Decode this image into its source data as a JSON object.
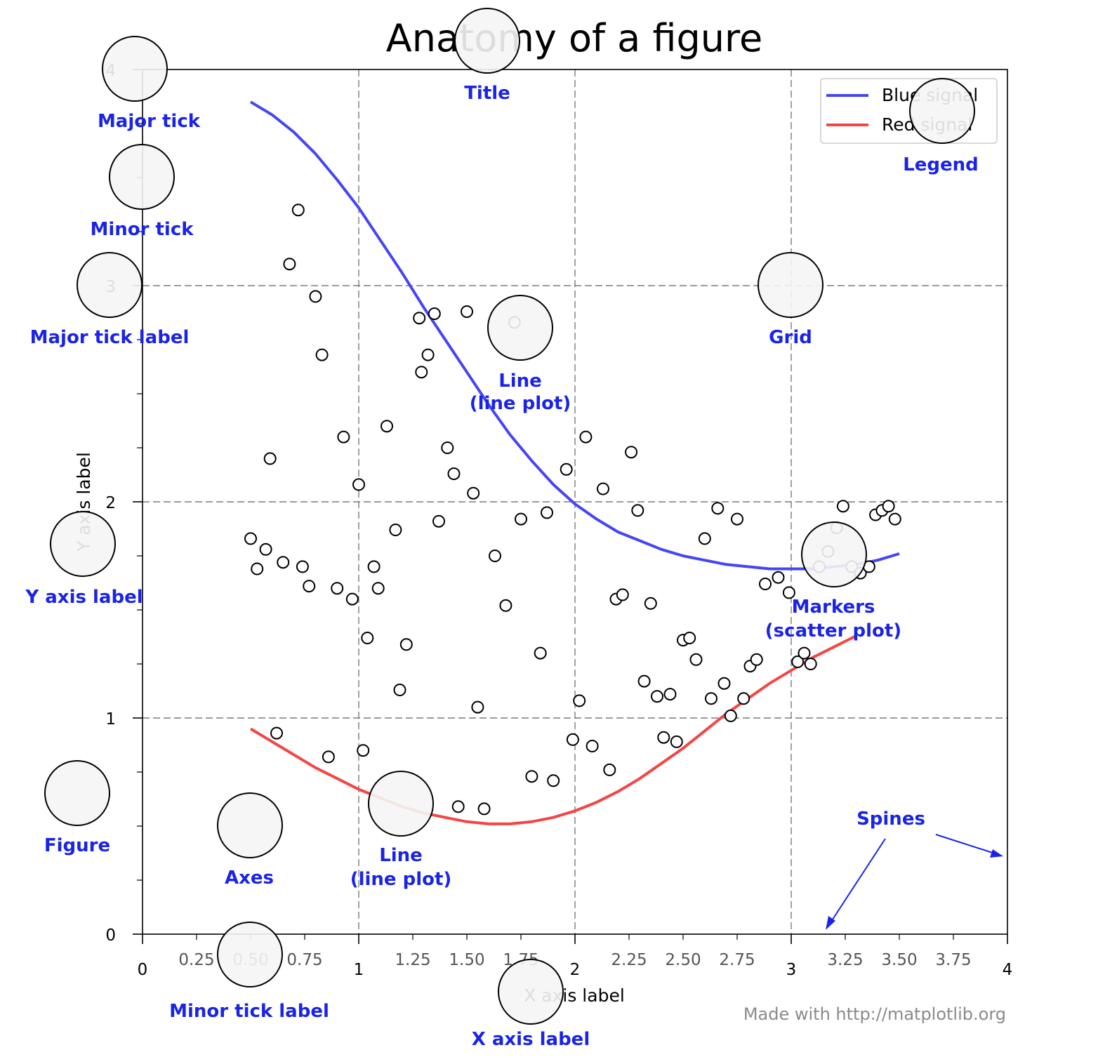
{
  "chart_data": {
    "type": "line",
    "title": "Anatomy of a figure",
    "xlabel": "X axis label",
    "ylabel": "Y axis label",
    "xlim": [
      0,
      4
    ],
    "ylim": [
      0,
      4
    ],
    "grid": true,
    "legend_position": "top-right",
    "x_major_ticks": [
      {
        "value": 0,
        "label": "0"
      },
      {
        "value": 1,
        "label": "1"
      },
      {
        "value": 2,
        "label": "2"
      },
      {
        "value": 3,
        "label": "3"
      },
      {
        "value": 4,
        "label": "4"
      }
    ],
    "x_minor_ticks": [
      {
        "value": 0.25,
        "label": "0.25"
      },
      {
        "value": 0.5,
        "label": "0.50"
      },
      {
        "value": 0.75,
        "label": "0.75"
      },
      {
        "value": 1.25,
        "label": "1.25"
      },
      {
        "value": 1.5,
        "label": "1.50"
      },
      {
        "value": 1.75,
        "label": "1.75"
      },
      {
        "value": 2.25,
        "label": "2.25"
      },
      {
        "value": 2.5,
        "label": "2.50"
      },
      {
        "value": 2.75,
        "label": "2.75"
      },
      {
        "value": 3.25,
        "label": "3.25"
      },
      {
        "value": 3.5,
        "label": "3.50"
      },
      {
        "value": 3.75,
        "label": "3.75"
      }
    ],
    "y_major_ticks": [
      {
        "value": 0,
        "label": "0"
      },
      {
        "value": 1,
        "label": "1"
      },
      {
        "value": 2,
        "label": "2"
      },
      {
        "value": 3,
        "label": "3"
      },
      {
        "value": 4,
        "label": "4"
      }
    ],
    "y_minor_ticks": [
      0.25,
      0.5,
      0.75,
      1.25,
      1.5,
      1.75,
      2.25,
      2.5,
      2.75,
      3.25,
      3.5,
      3.75
    ],
    "series": [
      {
        "name": "Blue signal",
        "color": "#4545f5",
        "x": [
          0.5,
          0.6,
          0.7,
          0.8,
          0.9,
          1.0,
          1.1,
          1.2,
          1.3,
          1.4,
          1.5,
          1.6,
          1.7,
          1.8,
          1.9,
          2.0,
          2.1,
          2.2,
          2.3,
          2.4,
          2.5,
          2.6,
          2.7,
          2.8,
          2.9,
          3.0,
          3.1,
          3.2,
          3.3,
          3.4,
          3.5
        ],
        "y": [
          3.85,
          3.79,
          3.71,
          3.61,
          3.49,
          3.36,
          3.21,
          3.06,
          2.9,
          2.75,
          2.6,
          2.45,
          2.31,
          2.19,
          2.08,
          1.99,
          1.92,
          1.86,
          1.82,
          1.78,
          1.75,
          1.73,
          1.71,
          1.7,
          1.69,
          1.69,
          1.69,
          1.7,
          1.71,
          1.73,
          1.76
        ]
      },
      {
        "name": "Red signal",
        "color": "#f54545",
        "x": [
          0.5,
          0.6,
          0.7,
          0.8,
          0.9,
          1.0,
          1.1,
          1.2,
          1.3,
          1.4,
          1.5,
          1.6,
          1.7,
          1.8,
          1.9,
          2.0,
          2.1,
          2.2,
          2.3,
          2.4,
          2.5,
          2.6,
          2.7,
          2.8,
          2.9,
          3.0,
          3.1,
          3.2,
          3.3
        ],
        "y": [
          0.95,
          0.89,
          0.83,
          0.77,
          0.72,
          0.67,
          0.63,
          0.59,
          0.56,
          0.54,
          0.52,
          0.51,
          0.51,
          0.52,
          0.54,
          0.57,
          0.61,
          0.66,
          0.72,
          0.79,
          0.86,
          0.94,
          1.02,
          1.09,
          1.16,
          1.22,
          1.28,
          1.33,
          1.38
        ]
      }
    ],
    "scatter": {
      "color": "#000000",
      "x": [
        0.72,
        0.68,
        0.8,
        0.83,
        0.59,
        0.5,
        0.53,
        0.57,
        0.65,
        0.74,
        0.77,
        0.9,
        0.97,
        0.93,
        1.0,
        0.62,
        0.86,
        1.02,
        1.04,
        1.07,
        1.09,
        1.13,
        1.17,
        1.22,
        1.19,
        1.28,
        1.29,
        1.32,
        1.35,
        1.37,
        1.41,
        1.44,
        1.5,
        1.53,
        1.55,
        1.46,
        1.58,
        1.63,
        1.68,
        1.72,
        1.75,
        1.8,
        1.84,
        1.87,
        1.9,
        1.96,
        1.99,
        2.02,
        2.05,
        2.08,
        2.13,
        2.16,
        2.19,
        2.22,
        2.26,
        2.29,
        2.32,
        2.35,
        2.38,
        2.41,
        2.44,
        2.47,
        2.5,
        2.53,
        2.56,
        2.6,
        2.63,
        2.66,
        2.69,
        2.72,
        2.75,
        2.78,
        2.81,
        2.84,
        2.88,
        2.94,
        2.99,
        3.03,
        3.06,
        3.09,
        3.13,
        3.17,
        3.21,
        3.24,
        3.28,
        3.32,
        3.36,
        3.39,
        3.42,
        3.45,
        3.48
      ],
      "y": [
        3.35,
        3.1,
        2.95,
        2.68,
        2.2,
        1.83,
        1.69,
        1.78,
        1.72,
        1.7,
        1.61,
        1.6,
        1.55,
        2.3,
        2.08,
        0.93,
        0.82,
        0.85,
        1.37,
        1.7,
        1.6,
        2.35,
        1.87,
        1.34,
        1.13,
        2.85,
        2.6,
        2.68,
        2.87,
        1.91,
        2.25,
        2.13,
        2.88,
        2.04,
        1.05,
        0.59,
        0.58,
        1.75,
        1.52,
        2.83,
        1.92,
        0.73,
        1.3,
        1.95,
        0.71,
        2.15,
        0.9,
        1.08,
        2.3,
        0.87,
        2.06,
        0.76,
        1.55,
        1.57,
        2.23,
        1.96,
        1.17,
        1.53,
        1.1,
        0.91,
        1.11,
        0.89,
        1.36,
        1.37,
        1.27,
        1.83,
        1.09,
        1.97,
        1.16,
        1.01,
        1.92,
        1.09,
        1.24,
        1.27,
        1.62,
        1.65,
        1.58,
        1.26,
        1.3,
        1.25,
        1.7,
        1.77,
        1.88,
        1.98,
        1.7,
        1.67,
        1.7,
        1.94,
        1.96,
        1.98,
        1.92
      ]
    }
  },
  "annotations": {
    "major_tick": "Major tick",
    "minor_tick": "Minor tick",
    "major_tick_label": "Major tick label",
    "y_axis_label": "Y axis label",
    "figure": "Figure",
    "axes": "Axes",
    "minor_tick_label": "Minor tick label",
    "x_axis_label": "X axis label",
    "title": "Title",
    "legend": "Legend",
    "grid": "Grid",
    "line_plot": "Line",
    "line_plot_sub": "(line plot)",
    "line_plot_2": "Line",
    "line_plot_2_sub": "(line plot)",
    "markers": "Markers",
    "markers_sub": "(scatter plot)",
    "spines": "Spines"
  },
  "credit": "Made with http://matplotlib.org",
  "colors": {
    "annotation": "#1a24e6",
    "grid": "#7a7a7a",
    "marker_circle_fill": "#f5f5f5"
  }
}
